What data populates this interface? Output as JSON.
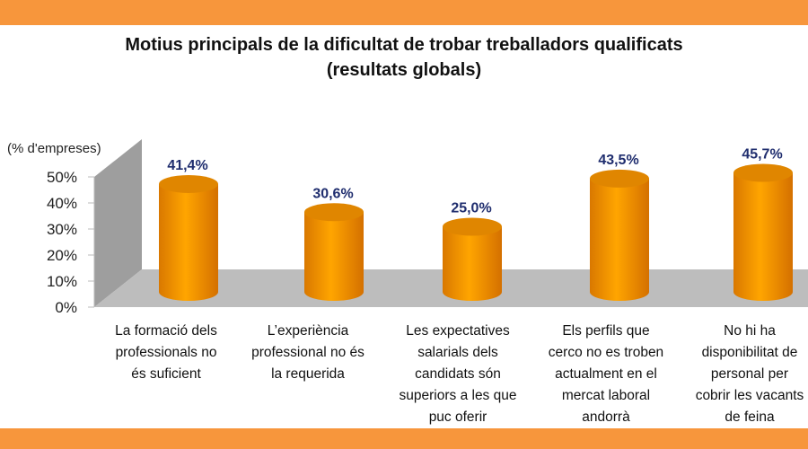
{
  "colors": {
    "band": "#f7963c",
    "cylinder": "#f59b00",
    "cylinder_top": "#e08600",
    "wall": "#9e9e9e",
    "floor": "#bdbdbd",
    "data_label": "#1f2d6e"
  },
  "chart_data": {
    "type": "bar",
    "style": "3d-cylinder",
    "title": [
      "Motius principals de la dificultat de trobar treballadors qualificats",
      "(resultats globals)"
    ],
    "ylabel": "(% d'empreses)",
    "ylim": [
      0,
      50
    ],
    "yticks": [
      "0%",
      "10%",
      "20%",
      "30%",
      "40%",
      "50%"
    ],
    "grid": false,
    "categories": [
      [
        "La formació dels",
        "professionals no",
        "és suficient"
      ],
      [
        "L’experiència",
        "professional no és",
        "la requerida"
      ],
      [
        "Les expectatives",
        "salarials dels",
        "candidats són",
        "superiors a les que",
        "puc oferir"
      ],
      [
        "Els perfils que",
        "cerco no es troben",
        "actualment en el",
        "mercat laboral",
        "andorrà"
      ],
      [
        "No hi ha",
        "disponibilitat de",
        "personal per",
        "cobrir les vacants",
        "de feina"
      ]
    ],
    "values": [
      41.4,
      30.6,
      25.0,
      43.5,
      45.7
    ],
    "data_labels": [
      "41,4%",
      "30,6%",
      "25,0%",
      "43,5%",
      "45,7%"
    ]
  }
}
